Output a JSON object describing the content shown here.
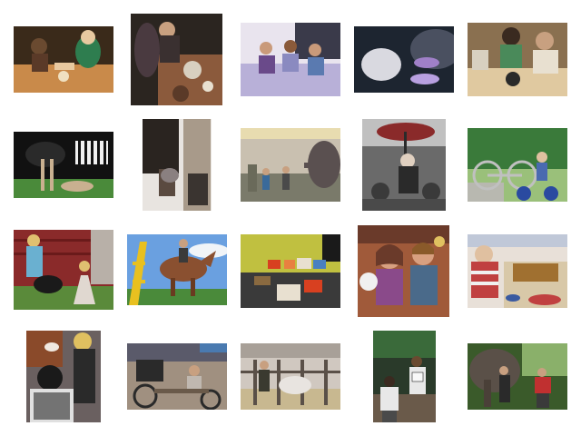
{
  "grid": {
    "background": "#ffffff",
    "tiles": [
      {
        "id": "t1",
        "subject": "family-meal-at-table",
        "palette": [
          "#3a2a1a",
          "#c98a4a",
          "#e8c9a0",
          "#2e7d4f"
        ]
      },
      {
        "id": "t2",
        "subject": "people-at-dessert-table",
        "palette": [
          "#2b2520",
          "#8b5a3c",
          "#d8d0c0",
          "#5a3a28"
        ]
      },
      {
        "id": "t3",
        "subject": "family-on-bed",
        "palette": [
          "#e9e4ee",
          "#6a4a8a",
          "#c99a7a",
          "#3a3a4a"
        ]
      },
      {
        "id": "t4",
        "subject": "pet-closeup-with-toys",
        "palette": [
          "#1d2530",
          "#d9d9e0",
          "#a080c8",
          "#4a5060"
        ]
      },
      {
        "id": "t5",
        "subject": "people-cooking-in-kitchen",
        "palette": [
          "#8a7050",
          "#e0c9a0",
          "#4a8a5a",
          "#2a2a2a"
        ]
      },
      {
        "id": "t6",
        "subject": "ostrich-and-zebra",
        "palette": [
          "#111111",
          "#f0f0f0",
          "#4a8a3a",
          "#c9b090"
        ]
      },
      {
        "id": "t7",
        "subject": "farrier-shoeing-horse",
        "palette": [
          "#2a2420",
          "#a89a8a",
          "#e8e4e0",
          "#5a4a40"
        ]
      },
      {
        "id": "t8",
        "subject": "elephant-at-fairground",
        "palette": [
          "#c9c0b0",
          "#5a5050",
          "#3a6a9a",
          "#7a7a6a"
        ]
      },
      {
        "id": "t9",
        "subject": "street-performer-umbrella",
        "palette": [
          "#6a6a6a",
          "#c0c0c0",
          "#8a2a2a",
          "#2a2a2a"
        ]
      },
      {
        "id": "t10",
        "subject": "child-with-bicycle",
        "palette": [
          "#3a7a3a",
          "#9ac07a",
          "#2a4aa0",
          "#c0c0c0"
        ]
      },
      {
        "id": "t11",
        "subject": "girls-with-goat-by-barn",
        "palette": [
          "#8a2a2a",
          "#5a8a3a",
          "#1a1a1a",
          "#e0d8d0"
        ]
      },
      {
        "id": "t12",
        "subject": "rider-on-bucking-bull",
        "palette": [
          "#6aa0e0",
          "#e8c020",
          "#8a5030",
          "#4a8a3a"
        ]
      },
      {
        "id": "t13",
        "subject": "craft-table-in-room",
        "palette": [
          "#c0c040",
          "#3a3a3a",
          "#d84020",
          "#e8e0d0"
        ]
      },
      {
        "id": "t14",
        "subject": "children-with-stuffed-toy",
        "palette": [
          "#a05a3a",
          "#d8a080",
          "#6a3a2a",
          "#e0c060"
        ]
      },
      {
        "id": "t15",
        "subject": "child-at-buffet",
        "palette": [
          "#c04040",
          "#e8e0d8",
          "#a07030",
          "#3a5aa0"
        ]
      },
      {
        "id": "t16",
        "subject": "hair-salon-blowdry",
        "palette": [
          "#1a1a1a",
          "#e0c0a0",
          "#6a6060",
          "#f0e8e0"
        ]
      },
      {
        "id": "t17",
        "subject": "horse-cart-at-fair",
        "palette": [
          "#5a5a6a",
          "#a09080",
          "#2a2a2a",
          "#c0b8b0"
        ]
      },
      {
        "id": "t18",
        "subject": "cattle-in-stalls",
        "palette": [
          "#a8a098",
          "#5a5048",
          "#d0c8c0",
          "#3a3a30"
        ]
      },
      {
        "id": "t19",
        "subject": "race-runners-with-bibs",
        "palette": [
          "#2a3a2a",
          "#e8e8e8",
          "#6a5a4a",
          "#3a6a3a"
        ]
      },
      {
        "id": "t20",
        "subject": "elephant-with-handlers",
        "palette": [
          "#3a5a2a",
          "#5a5048",
          "#c03030",
          "#8ab06a"
        ]
      }
    ]
  }
}
